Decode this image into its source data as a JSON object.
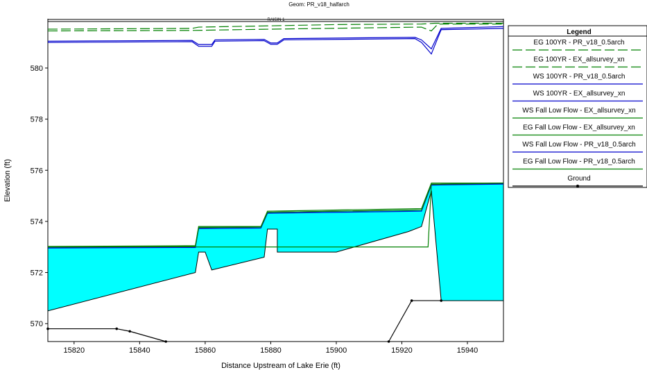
{
  "chart_data": {
    "type": "line",
    "title": "Geom: PR_v18_halfarch",
    "reach_label": "RAISIN 1",
    "xlabel": "Distance Upstream of Lake Erie (ft)",
    "ylabel": "Elevation (ft)",
    "xlim": [
      15812,
      15951
    ],
    "ylim": [
      569.3,
      581.9
    ],
    "x_ticks": [
      15820,
      15840,
      15860,
      15880,
      15900,
      15920,
      15940
    ],
    "y_ticks": [
      570,
      572,
      574,
      576,
      578,
      580
    ],
    "legend_title": "Legend",
    "legend_placement": "right",
    "fill_color": "#00ffff",
    "series": [
      {
        "name": "EG  100YR - PR_v18_0.5arch",
        "color": "#008000",
        "dash": "14,5",
        "marker": "arrow",
        "points": [
          [
            15812,
            581.52
          ],
          [
            15856,
            581.55
          ],
          [
            15858,
            581.6
          ],
          [
            15880,
            581.65
          ],
          [
            15900,
            581.7
          ],
          [
            15926,
            581.72
          ],
          [
            15930,
            581.75
          ],
          [
            15951,
            581.75
          ]
        ]
      },
      {
        "name": "EG  100YR - EX_allsurvey_xn",
        "color": "#008000",
        "dash": "14,5",
        "marker": "none",
        "points": [
          [
            15812,
            581.45
          ],
          [
            15856,
            581.47
          ],
          [
            15880,
            581.52
          ],
          [
            15926,
            581.6
          ],
          [
            15929,
            581.45
          ],
          [
            15931,
            581.72
          ],
          [
            15951,
            581.72
          ]
        ]
      },
      {
        "name": "WS  100YR - PR_v18_0.5arch",
        "color": "#0000cc",
        "dash": "none",
        "marker": "none",
        "points": [
          [
            15812,
            581.05
          ],
          [
            15856,
            581.08
          ],
          [
            15858,
            580.92
          ],
          [
            15862,
            580.92
          ],
          [
            15863,
            581.1
          ],
          [
            15878,
            581.12
          ],
          [
            15880,
            580.98
          ],
          [
            15882,
            580.98
          ],
          [
            15884,
            581.15
          ],
          [
            15924,
            581.2
          ],
          [
            15926,
            581.1
          ],
          [
            15929,
            580.75
          ],
          [
            15932,
            581.55
          ],
          [
            15951,
            581.62
          ]
        ]
      },
      {
        "name": "WS  100YR - EX_allsurvey_xn",
        "color": "#0000cc",
        "dash": "none",
        "marker": "none",
        "points": [
          [
            15812,
            581.0
          ],
          [
            15856,
            581.03
          ],
          [
            15858,
            580.85
          ],
          [
            15862,
            580.85
          ],
          [
            15863,
            581.05
          ],
          [
            15878,
            581.07
          ],
          [
            15880,
            580.93
          ],
          [
            15882,
            580.93
          ],
          [
            15884,
            581.1
          ],
          [
            15924,
            581.15
          ],
          [
            15926,
            581.0
          ],
          [
            15929,
            580.55
          ],
          [
            15932,
            581.5
          ],
          [
            15951,
            581.55
          ]
        ]
      },
      {
        "name": "WS  Fall Low Flow - EX_allsurvey_xn",
        "color": "#008000",
        "dash": "none",
        "marker": "none",
        "points": [
          [
            15812,
            573.0
          ],
          [
            15857,
            573.0
          ],
          [
            15928,
            573.0
          ],
          [
            15929,
            575.45
          ],
          [
            15951,
            575.48
          ]
        ]
      },
      {
        "name": "EG  Fall Low Flow - EX_allsurvey_xn",
        "color": "#008000",
        "dash": "none",
        "marker": "none",
        "points": [
          [
            15812,
            573.02
          ],
          [
            15857,
            573.05
          ],
          [
            15858,
            573.8
          ],
          [
            15877,
            573.8
          ],
          [
            15879,
            574.4
          ],
          [
            15926,
            574.5
          ],
          [
            15929,
            575.5
          ],
          [
            15951,
            575.5
          ]
        ]
      },
      {
        "name": "WS  Fall Low Flow - PR_v18_0.5arch",
        "color": "#0000cc",
        "dash": "none",
        "marker": "none",
        "points": [
          [
            15812,
            572.96
          ],
          [
            15857,
            572.98
          ],
          [
            15858,
            573.72
          ],
          [
            15877,
            573.74
          ],
          [
            15879,
            574.32
          ],
          [
            15926,
            574.4
          ],
          [
            15929,
            575.42
          ],
          [
            15951,
            575.46
          ]
        ]
      },
      {
        "name": "EG  Fall Low Flow - PR_v18_0.5arch",
        "color": "#008000",
        "dash": "none",
        "marker": "none",
        "points": [
          [
            15812,
            573.0
          ],
          [
            15857,
            573.02
          ],
          [
            15858,
            573.76
          ],
          [
            15877,
            573.78
          ],
          [
            15879,
            574.36
          ],
          [
            15926,
            574.45
          ],
          [
            15929,
            575.46
          ],
          [
            15951,
            575.5
          ]
        ]
      },
      {
        "name": "Ground",
        "color": "#000000",
        "dash": "none",
        "marker": "dot",
        "points": [
          [
            15812,
            569.8
          ],
          [
            15833,
            569.8
          ],
          [
            15837,
            569.7
          ],
          [
            15848,
            569.3
          ]
        ],
        "points2": [
          [
            15916,
            569.3
          ],
          [
            15923,
            570.9
          ],
          [
            15932,
            570.9
          ]
        ]
      }
    ],
    "fill_polygon": [
      [
        15812,
        573.0
      ],
      [
        15857,
        573.02
      ],
      [
        15858,
        573.76
      ],
      [
        15877,
        573.78
      ],
      [
        15879,
        574.36
      ],
      [
        15926,
        574.45
      ],
      [
        15929,
        575.46
      ],
      [
        15951,
        575.5
      ],
      [
        15951,
        570.9
      ],
      [
        15932,
        570.9
      ],
      [
        15929,
        575.2
      ],
      [
        15926,
        573.8
      ],
      [
        15922,
        573.6
      ],
      [
        15900,
        572.8
      ],
      [
        15882,
        572.8
      ],
      [
        15882,
        573.7
      ],
      [
        15879,
        573.7
      ],
      [
        15878,
        572.6
      ],
      [
        15862,
        572.1
      ],
      [
        15860,
        572.8
      ],
      [
        15858,
        572.8
      ],
      [
        15857,
        572.0
      ],
      [
        15812,
        570.5
      ]
    ]
  }
}
